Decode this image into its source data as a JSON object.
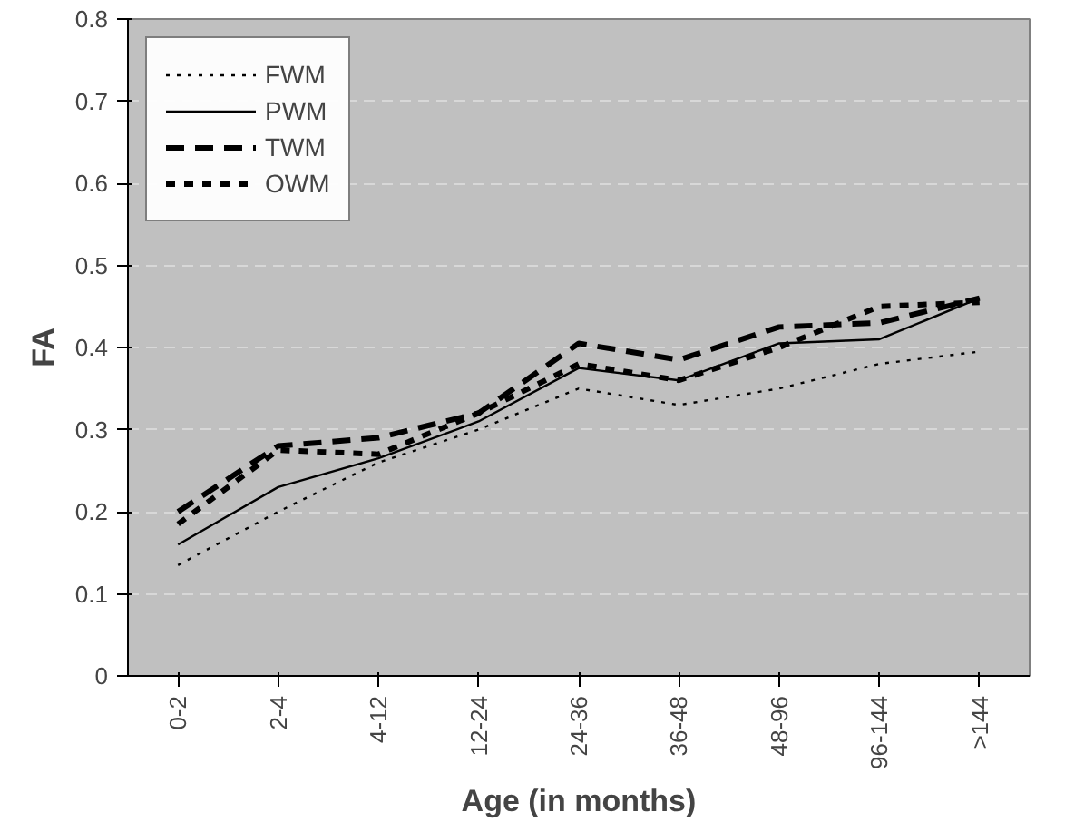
{
  "chart_data": {
    "type": "line",
    "xlabel": "Age (in months)",
    "ylabel": "FA",
    "categories": [
      "0-2",
      "2-4",
      "4-12",
      "12-24",
      "24-36",
      "36-48",
      "48-96",
      "96-144",
      ">144"
    ],
    "ylim": [
      0,
      0.8
    ],
    "yticks": [
      0,
      0.1,
      0.2,
      0.3,
      0.4,
      0.5,
      0.6,
      0.7,
      0.8
    ],
    "grid": "y",
    "legend": "top left",
    "marker": "none",
    "series": [
      {
        "name": "FWM",
        "color": "#000000",
        "line_style": "dotted",
        "values": [
          0.135,
          0.2,
          0.26,
          0.3,
          0.35,
          0.33,
          0.35,
          0.38,
          0.395
        ]
      },
      {
        "name": "PWM",
        "color": "#000000",
        "line_style": "solid",
        "values": [
          0.16,
          0.23,
          0.265,
          0.31,
          0.375,
          0.36,
          0.405,
          0.41,
          0.46
        ]
      },
      {
        "name": "TWM",
        "color": "#000000",
        "line_style": "dashed",
        "values": [
          0.2,
          0.28,
          0.29,
          0.32,
          0.405,
          0.385,
          0.425,
          0.43,
          0.46
        ]
      },
      {
        "name": "OWM",
        "color": "#000000",
        "line_style": "dashed",
        "values": [
          0.185,
          0.275,
          0.27,
          0.32,
          0.38,
          0.36,
          0.4,
          0.45,
          0.455
        ]
      }
    ]
  }
}
